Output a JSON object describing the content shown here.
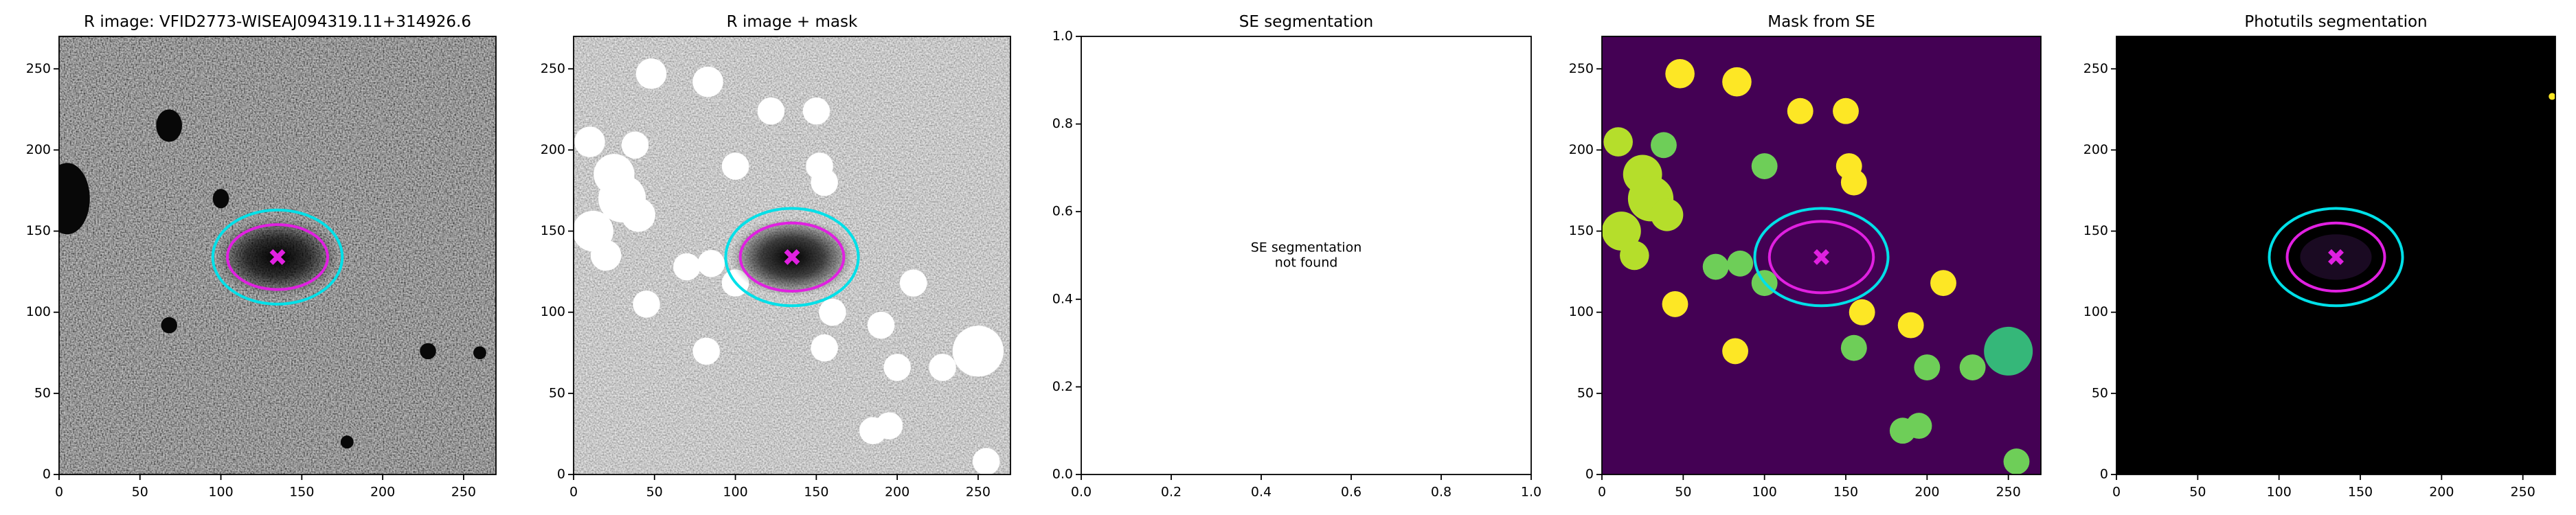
{
  "chart_data": [
    {
      "type": "image",
      "title": "R image: VFID2773-WISEAJ094319.11+314926.6",
      "background": "noise-dark",
      "xlim": [
        0,
        270
      ],
      "ylim": [
        0,
        270
      ],
      "xticks": [
        0,
        50,
        100,
        150,
        200,
        250
      ],
      "yticks": [
        0,
        50,
        100,
        150,
        200,
        250
      ],
      "ellipses": [
        {
          "x": 135,
          "y": 134,
          "width": 80,
          "height": 58,
          "color": "#00e0e8"
        },
        {
          "x": 135,
          "y": 134,
          "width": 62,
          "height": 40,
          "color": "#e020e0"
        }
      ],
      "marker": {
        "x": 135,
        "y": 134,
        "color": "#e020e0"
      }
    },
    {
      "type": "image",
      "title": "R image + mask",
      "background": "noise-masked",
      "xlim": [
        0,
        270
      ],
      "ylim": [
        0,
        270
      ],
      "xticks": [
        0,
        50,
        100,
        150,
        200,
        250
      ],
      "yticks": [
        0,
        50,
        100,
        150,
        200,
        250
      ],
      "ellipses": [
        {
          "x": 135,
          "y": 134,
          "width": 82,
          "height": 60,
          "color": "#00e0e8"
        },
        {
          "x": 135,
          "y": 134,
          "width": 64,
          "height": 42,
          "color": "#e020e0"
        }
      ],
      "marker": {
        "x": 135,
        "y": 134,
        "color": "#e020e0"
      }
    },
    {
      "type": "empty",
      "title": "SE segmentation",
      "annotation": [
        "SE segmentation",
        "not found"
      ],
      "xlim": [
        0,
        1
      ],
      "ylim": [
        0,
        1
      ],
      "xticks": [
        {
          "value": 0,
          "label": "0.0"
        },
        {
          "value": 0.2,
          "label": "0.2"
        },
        {
          "value": 0.4,
          "label": "0.4"
        },
        {
          "value": 0.6,
          "label": "0.6"
        },
        {
          "value": 0.8,
          "label": "0.8"
        },
        {
          "value": 1,
          "label": "1.0"
        }
      ],
      "yticks": [
        {
          "value": 0,
          "label": "0.0"
        },
        {
          "value": 0.2,
          "label": "0.2"
        },
        {
          "value": 0.4,
          "label": "0.4"
        },
        {
          "value": 0.6,
          "label": "0.6"
        },
        {
          "value": 0.8,
          "label": "0.8"
        },
        {
          "value": 1,
          "label": "1.0"
        }
      ]
    },
    {
      "type": "image",
      "title": "Mask from SE",
      "background": "viridis-mask",
      "xlim": [
        0,
        270
      ],
      "ylim": [
        0,
        270
      ],
      "xticks": [
        0,
        50,
        100,
        150,
        200,
        250
      ],
      "yticks": [
        0,
        50,
        100,
        150,
        200,
        250
      ],
      "ellipses": [
        {
          "x": 135,
          "y": 134,
          "width": 82,
          "height": 60,
          "color": "#00e0e8"
        },
        {
          "x": 135,
          "y": 134,
          "width": 64,
          "height": 44,
          "color": "#e020e0"
        }
      ],
      "marker": {
        "x": 135,
        "y": 134,
        "color": "#e020e0"
      }
    },
    {
      "type": "image",
      "title": "Photutils segmentation",
      "background": "black",
      "xlim": [
        0,
        270
      ],
      "ylim": [
        0,
        270
      ],
      "xticks": [
        0,
        50,
        100,
        150,
        200,
        250
      ],
      "yticks": [
        0,
        50,
        100,
        150,
        200,
        250
      ],
      "ellipses": [
        {
          "x": 135,
          "y": 134,
          "width": 82,
          "height": 60,
          "color": "#00e0e8"
        },
        {
          "x": 135,
          "y": 134,
          "width": 60,
          "height": 42,
          "color": "#e020e0"
        }
      ],
      "marker": {
        "x": 135,
        "y": 134,
        "color": "#e020e0"
      }
    }
  ]
}
